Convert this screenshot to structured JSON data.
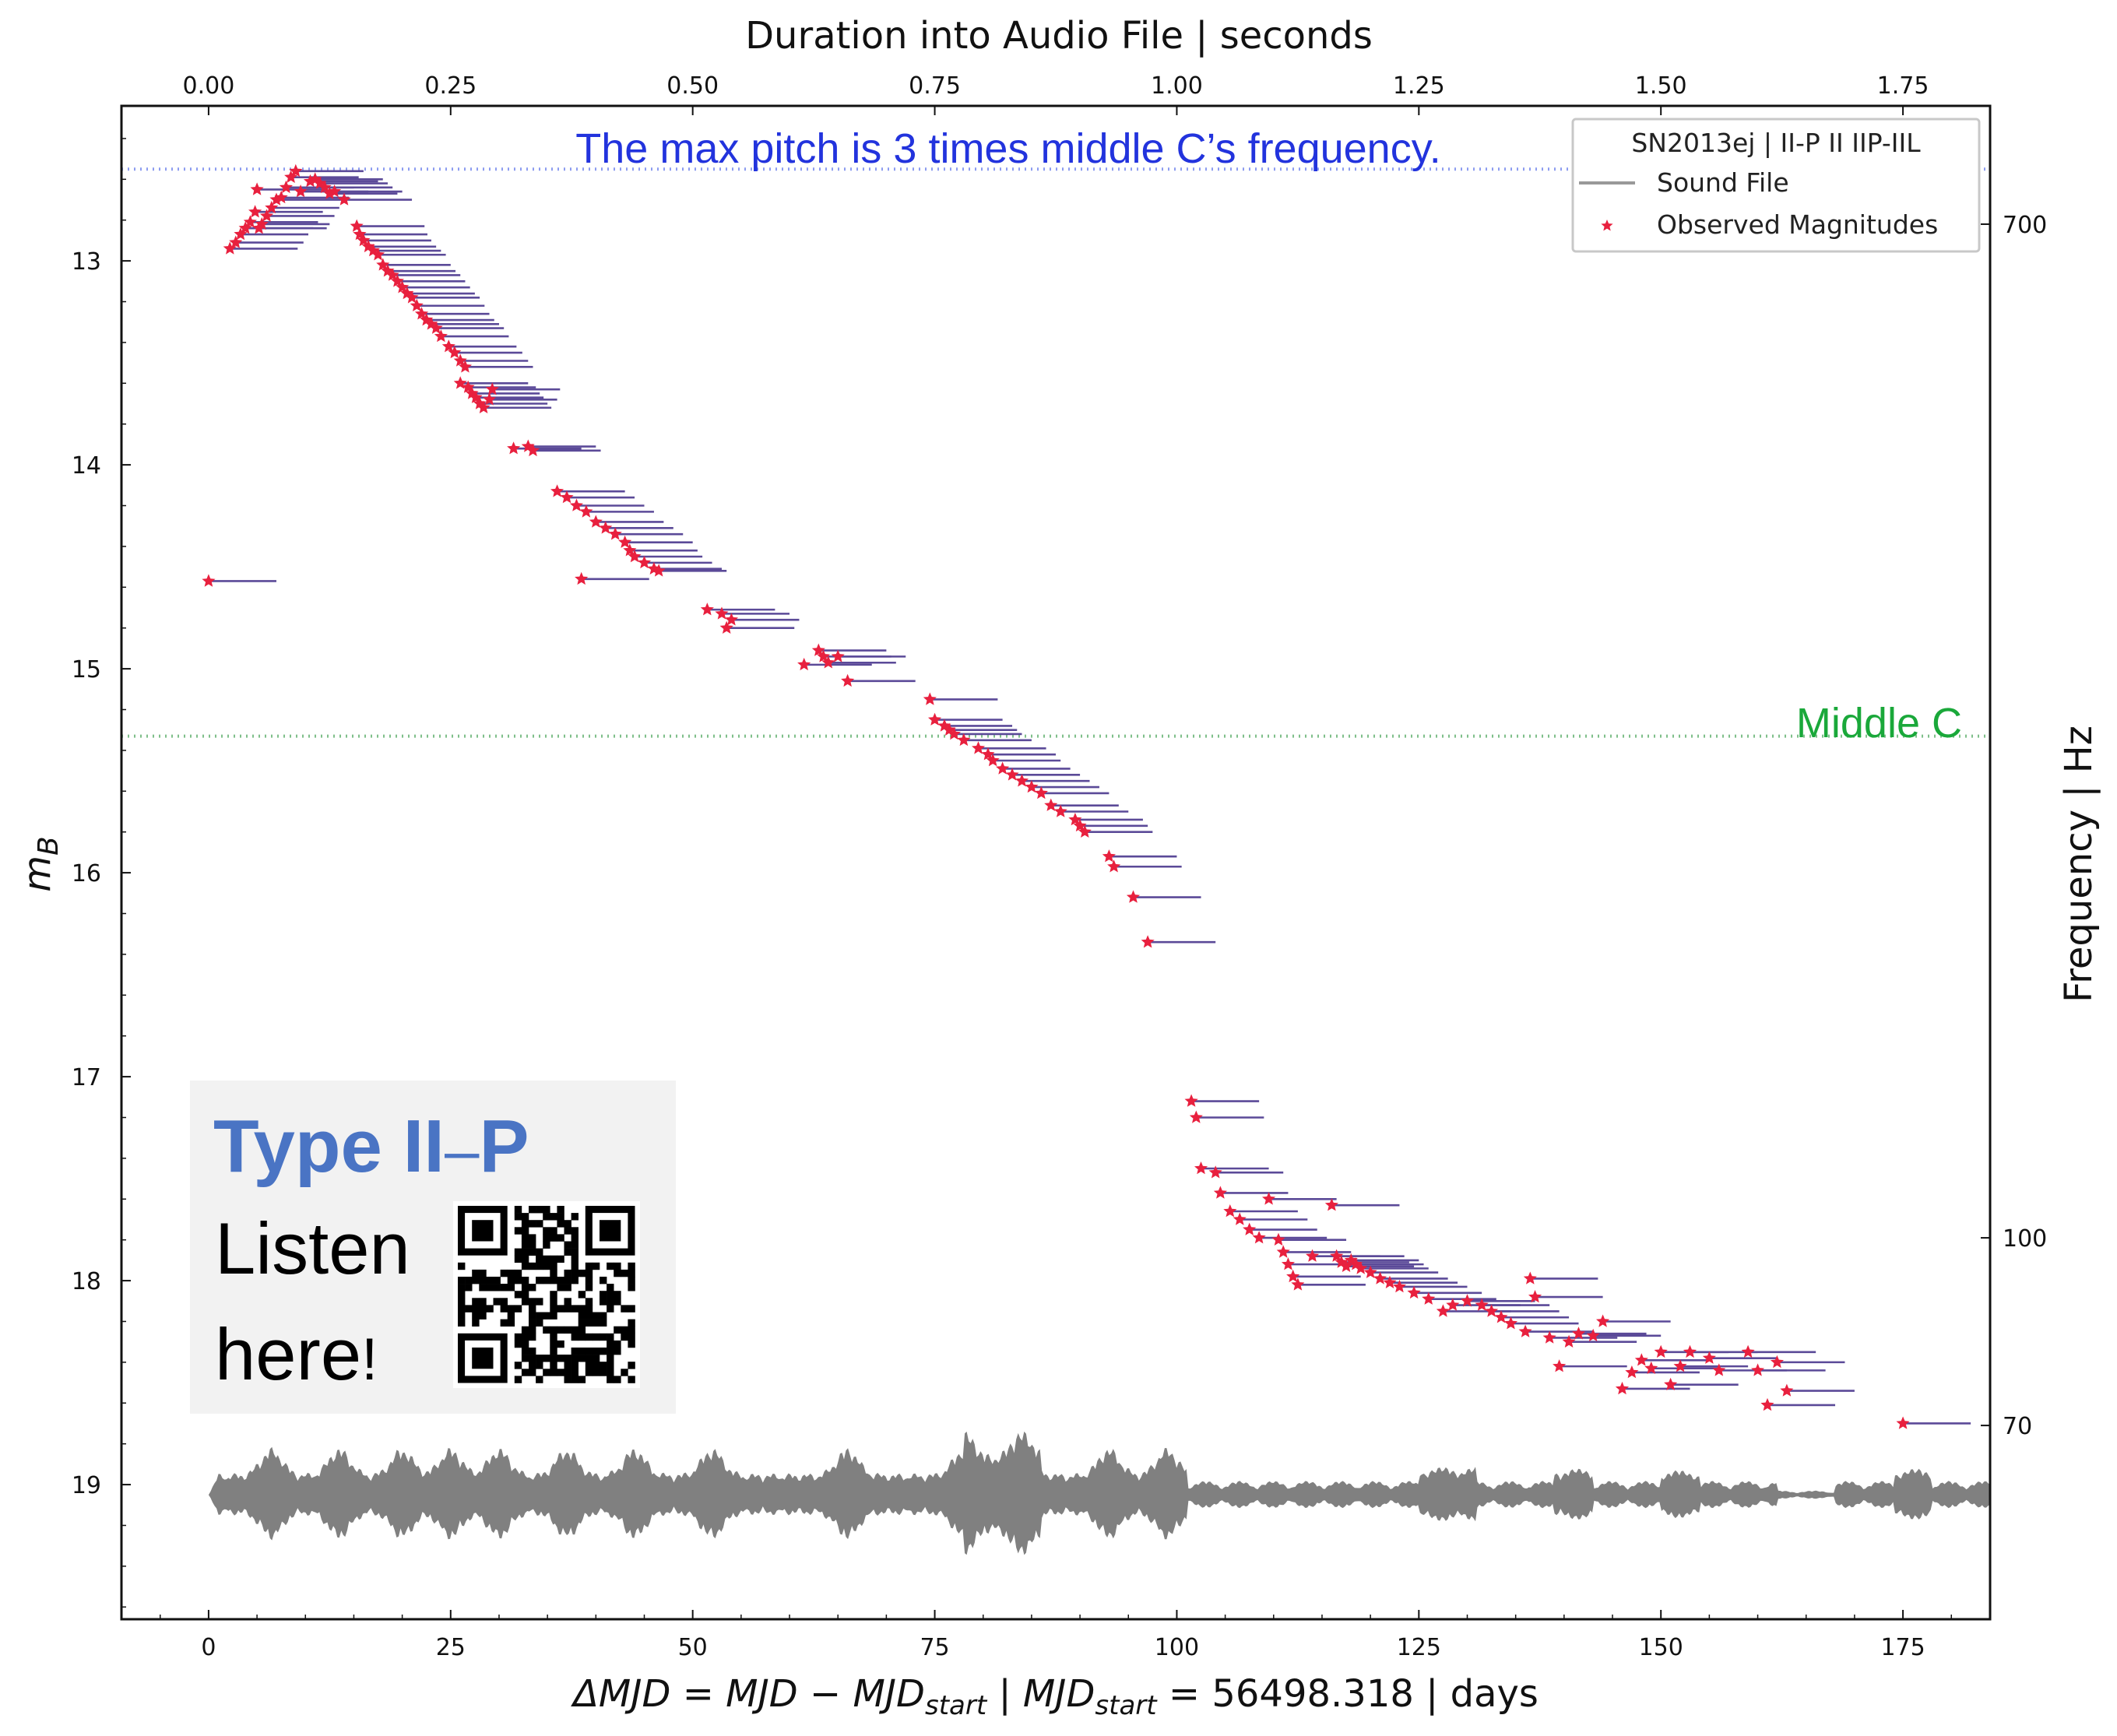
{
  "chart_data": {
    "type": "scatter",
    "title": "",
    "xlabel": "ΔMJD = MJD − MJD_start | MJD_start = 56498.318 | days",
    "xlabel_parts": {
      "delta": "ΔMJD = MJD − MJD",
      "sub1": "start",
      "mid": "  |  MJD",
      "sub2": "start",
      "tail": " = 56498.318 | days"
    },
    "ylabel": "m_B",
    "ylabel_parts": {
      "base": "m",
      "sub": "B"
    },
    "top_xlabel": "Duration into Audio File | seconds",
    "right_ylabel": "Frequency | Hz",
    "xlim": [
      -9,
      184
    ],
    "ylim": [
      19.66,
      12.24
    ],
    "y_inverted": true,
    "x_ticks": [
      0,
      25,
      50,
      75,
      100,
      125,
      150,
      175
    ],
    "y_ticks": [
      13,
      14,
      15,
      16,
      17,
      18,
      19
    ],
    "top_ticks": [
      {
        "value": 0.0,
        "label": "0.00"
      },
      {
        "value": 0.25,
        "label": "0.25"
      },
      {
        "value": 0.5,
        "label": "0.50"
      },
      {
        "value": 0.75,
        "label": "0.75"
      },
      {
        "value": 1.0,
        "label": "1.00"
      },
      {
        "value": 1.25,
        "label": "1.25"
      },
      {
        "value": 1.5,
        "label": "1.50"
      },
      {
        "value": 1.75,
        "label": "1.75"
      }
    ],
    "top_axis_seconds_per_day": 0.01,
    "right_ticks": [
      {
        "label": "700",
        "at_mag": 12.82
      },
      {
        "label": "100",
        "at_mag": 17.79
      },
      {
        "label": "70",
        "at_mag": 18.71
      }
    ],
    "legend": {
      "position": "top-right",
      "title": "SN2013ej |  II-P II IIP-IIL",
      "entries": [
        {
          "label": "Sound File",
          "color": "#999999",
          "marker": "line"
        },
        {
          "label": "Observed Magnitudes",
          "color": "#e8203e",
          "marker": "star"
        }
      ]
    },
    "hlines": [
      {
        "y": 12.55,
        "color": "#8c9cf0",
        "style": "dotted",
        "label": "The max pitch is 3 times middle C’s frequency.",
        "label_color": "#2233dd"
      },
      {
        "y": 15.33,
        "color": "#7fbf8a",
        "style": "dotted",
        "label": "Middle C",
        "label_color": "#1aa83a"
      }
    ],
    "colors": {
      "note_line": "#5b4a98",
      "marker": "#e8203e",
      "sound": "#808080"
    },
    "note_length_days": 7,
    "series": [
      {
        "name": "Observed Magnitudes",
        "points": [
          [
            0.0,
            14.57
          ],
          [
            2.2,
            12.94
          ],
          [
            2.8,
            12.91
          ],
          [
            3.3,
            12.87
          ],
          [
            3.8,
            12.84
          ],
          [
            4.3,
            12.81
          ],
          [
            4.8,
            12.76
          ],
          [
            5.0,
            12.65
          ],
          [
            5.5,
            12.82
          ],
          [
            5.2,
            12.84
          ],
          [
            6.0,
            12.78
          ],
          [
            6.5,
            12.74
          ],
          [
            7.0,
            12.7
          ],
          [
            7.5,
            12.69
          ],
          [
            8.0,
            12.64
          ],
          [
            8.5,
            12.59
          ],
          [
            9.0,
            12.56
          ],
          [
            9.5,
            12.66
          ],
          [
            10.5,
            12.61
          ],
          [
            11.0,
            12.6
          ],
          [
            11.5,
            12.62
          ],
          [
            12.0,
            12.64
          ],
          [
            12.5,
            12.67
          ],
          [
            13.0,
            12.66
          ],
          [
            14.0,
            12.7
          ],
          [
            15.3,
            12.83
          ],
          [
            15.6,
            12.87
          ],
          [
            16.0,
            12.9
          ],
          [
            16.5,
            12.93
          ],
          [
            17.0,
            12.95
          ],
          [
            17.5,
            12.97
          ],
          [
            18.0,
            13.02
          ],
          [
            18.5,
            13.05
          ],
          [
            19.0,
            13.07
          ],
          [
            19.5,
            13.1
          ],
          [
            20.0,
            13.13
          ],
          [
            20.5,
            13.16
          ],
          [
            21.0,
            13.18
          ],
          [
            21.5,
            13.22
          ],
          [
            22.0,
            13.26
          ],
          [
            22.5,
            13.29
          ],
          [
            23.0,
            13.31
          ],
          [
            23.5,
            13.33
          ],
          [
            24.0,
            13.37
          ],
          [
            24.8,
            13.42
          ],
          [
            25.4,
            13.45
          ],
          [
            26.0,
            13.49
          ],
          [
            26.5,
            13.52
          ],
          [
            26.0,
            13.6
          ],
          [
            26.8,
            13.62
          ],
          [
            27.2,
            13.65
          ],
          [
            27.6,
            13.67
          ],
          [
            28.0,
            13.7
          ],
          [
            28.4,
            13.72
          ],
          [
            29.0,
            13.68
          ],
          [
            29.3,
            13.63
          ],
          [
            31.5,
            13.92
          ],
          [
            33.5,
            13.93
          ],
          [
            33.0,
            13.91
          ],
          [
            36.0,
            14.13
          ],
          [
            37.0,
            14.16
          ],
          [
            38.0,
            14.2
          ],
          [
            39.0,
            14.23
          ],
          [
            40.0,
            14.28
          ],
          [
            41.0,
            14.31
          ],
          [
            42.0,
            14.34
          ],
          [
            43.0,
            14.38
          ],
          [
            43.5,
            14.42
          ],
          [
            44.0,
            14.45
          ],
          [
            45.0,
            14.48
          ],
          [
            46.0,
            14.51
          ],
          [
            46.5,
            14.52
          ],
          [
            38.5,
            14.56
          ],
          [
            51.5,
            14.71
          ],
          [
            53.0,
            14.73
          ],
          [
            54.0,
            14.76
          ],
          [
            53.5,
            14.8
          ],
          [
            61.5,
            14.98
          ],
          [
            63.0,
            14.91
          ],
          [
            63.5,
            14.94
          ],
          [
            64.0,
            14.97
          ],
          [
            65.0,
            14.94
          ],
          [
            66.0,
            15.06
          ],
          [
            74.5,
            15.15
          ],
          [
            75.0,
            15.25
          ],
          [
            76.0,
            15.28
          ],
          [
            76.5,
            15.3
          ],
          [
            77.0,
            15.32
          ],
          [
            78.0,
            15.35
          ],
          [
            79.5,
            15.39
          ],
          [
            80.5,
            15.42
          ],
          [
            81.0,
            15.45
          ],
          [
            82.0,
            15.49
          ],
          [
            83.0,
            15.52
          ],
          [
            84.0,
            15.55
          ],
          [
            85.0,
            15.58
          ],
          [
            86.0,
            15.61
          ],
          [
            87.0,
            15.67
          ],
          [
            88.0,
            15.7
          ],
          [
            89.5,
            15.74
          ],
          [
            90.0,
            15.77
          ],
          [
            90.5,
            15.8
          ],
          [
            93.0,
            15.92
          ],
          [
            93.5,
            15.97
          ],
          [
            95.5,
            16.12
          ],
          [
            97.0,
            16.34
          ],
          [
            101.5,
            17.12
          ],
          [
            102.0,
            17.2
          ],
          [
            102.5,
            17.45
          ],
          [
            104.0,
            17.47
          ],
          [
            104.5,
            17.57
          ],
          [
            105.5,
            17.66
          ],
          [
            106.5,
            17.7
          ],
          [
            107.5,
            17.75
          ],
          [
            108.5,
            17.79
          ],
          [
            109.5,
            17.6
          ],
          [
            110.5,
            17.8
          ],
          [
            111.0,
            17.86
          ],
          [
            111.5,
            17.92
          ],
          [
            112.0,
            17.98
          ],
          [
            112.5,
            18.02
          ],
          [
            114.0,
            17.88
          ],
          [
            116.0,
            17.63
          ],
          [
            116.5,
            17.88
          ],
          [
            117.0,
            17.91
          ],
          [
            117.5,
            17.93
          ],
          [
            118.0,
            17.9
          ],
          [
            118.5,
            17.92
          ],
          [
            119.0,
            17.94
          ],
          [
            120.0,
            17.96
          ],
          [
            121.0,
            17.99
          ],
          [
            122.0,
            18.01
          ],
          [
            123.0,
            18.03
          ],
          [
            124.5,
            18.06
          ],
          [
            126.0,
            18.09
          ],
          [
            127.5,
            18.15
          ],
          [
            128.5,
            18.12
          ],
          [
            130.0,
            18.1
          ],
          [
            131.5,
            18.12
          ],
          [
            132.5,
            18.15
          ],
          [
            133.5,
            18.18
          ],
          [
            134.5,
            18.21
          ],
          [
            136.0,
            18.25
          ],
          [
            136.5,
            17.99
          ],
          [
            137.0,
            18.08
          ],
          [
            138.5,
            18.28
          ],
          [
            139.5,
            18.42
          ],
          [
            140.5,
            18.3
          ],
          [
            141.5,
            18.26
          ],
          [
            143.0,
            18.27
          ],
          [
            144.0,
            18.2
          ],
          [
            146.0,
            18.53
          ],
          [
            147.0,
            18.45
          ],
          [
            148.0,
            18.39
          ],
          [
            149.0,
            18.43
          ],
          [
            150.0,
            18.35
          ],
          [
            151.0,
            18.51
          ],
          [
            152.0,
            18.42
          ],
          [
            153.0,
            18.35
          ],
          [
            155.0,
            18.38
          ],
          [
            156.0,
            18.44
          ],
          [
            159.0,
            18.35
          ],
          [
            160.0,
            18.44
          ],
          [
            161.0,
            18.61
          ],
          [
            162.0,
            18.4
          ],
          [
            163.0,
            18.54
          ],
          [
            175.0,
            18.7
          ]
        ]
      }
    ]
  },
  "qr_card": {
    "title_main": "Type II",
    "title_dash": "–",
    "title_end": "P",
    "line1": "Listen",
    "line2": "here",
    "bang": "!"
  }
}
